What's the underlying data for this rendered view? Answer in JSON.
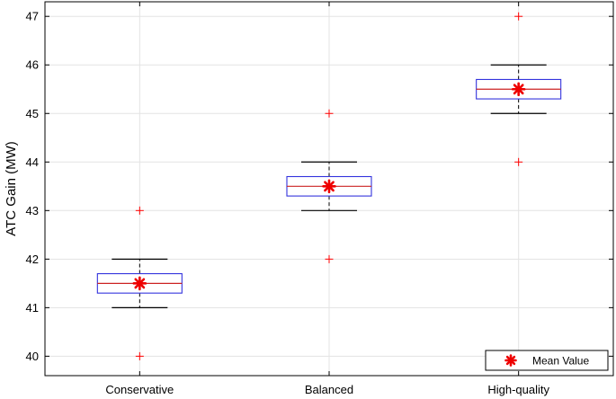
{
  "chart_data": {
    "type": "box",
    "title": "",
    "xlabel": "",
    "ylabel": "ATC Gain (MW)",
    "ylim": [
      39.6,
      47.3
    ],
    "yticks": [
      40,
      41,
      42,
      43,
      44,
      45,
      46,
      47
    ],
    "grid": true,
    "categories": [
      "Conservative",
      "Balanced",
      "High-quality"
    ],
    "boxes": [
      {
        "category": "Conservative",
        "whisker_low": 41,
        "q1": 41.3,
        "median": 41.5,
        "q3": 41.7,
        "whisker_high": 42,
        "mean": 41.5,
        "outliers": [
          40,
          43
        ]
      },
      {
        "category": "Balanced",
        "whisker_low": 43,
        "q1": 43.3,
        "median": 43.5,
        "q3": 43.7,
        "whisker_high": 44,
        "mean": 43.5,
        "outliers": [
          42,
          45
        ]
      },
      {
        "category": "High-quality",
        "whisker_low": 45,
        "q1": 45.3,
        "median": 45.5,
        "q3": 45.7,
        "whisker_high": 46,
        "mean": 45.5,
        "outliers": [
          44,
          47
        ]
      }
    ],
    "legend": {
      "label": "Mean Value",
      "position": "bottom-right"
    },
    "colors": {
      "box": "#3333dd",
      "median": "#cc2222",
      "whisker": "#000000",
      "outlier": "#ff0000",
      "mean": "#ee0000",
      "grid": "#e3e3e3"
    }
  }
}
